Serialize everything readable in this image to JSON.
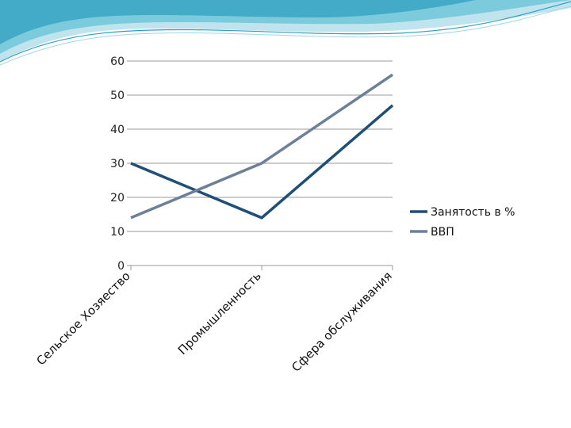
{
  "chart_data": {
    "type": "line",
    "categories": [
      "Сельское Хозяество",
      "Промышленность",
      "Сфера обслуживания"
    ],
    "series": [
      {
        "name": "Занятость в %",
        "values": [
          30,
          14,
          47
        ],
        "color": "#1f4e79"
      },
      {
        "name": "ВВП",
        "values": [
          14,
          30,
          56
        ],
        "color": "#6d7f99"
      }
    ],
    "yticks": [
      0,
      10,
      20,
      30,
      40,
      50,
      60
    ],
    "ylim": [
      0,
      60
    ],
    "grid": true,
    "legend_position": "right"
  },
  "theme": {
    "header_colors": [
      "#bfe4ee",
      "#6fc3d6",
      "#2f9fbf"
    ]
  }
}
